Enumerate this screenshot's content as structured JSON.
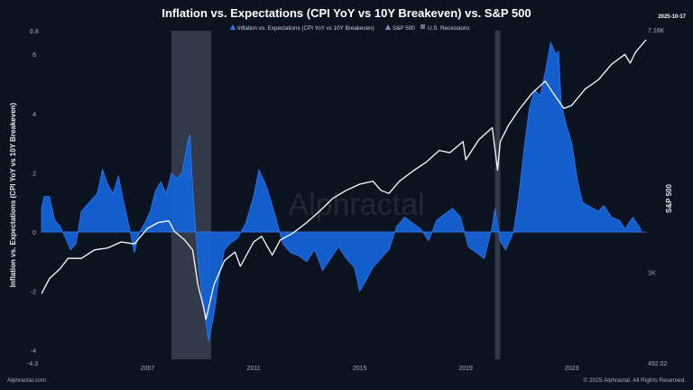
{
  "page": {
    "title": "Inflation vs. Expectations (CPI YoY vs 10Y Breakeven) vs. S&P 500",
    "date_badge": "2025-10-17",
    "footer_left": "Alphractal.com",
    "footer_right": "© 2025 Alphractal. All Rights Reserved.",
    "watermark": "Alphractal"
  },
  "colors": {
    "background": "#0b1220",
    "spread_fill": "#1463d6",
    "spread_line": "#2a7bf2",
    "sp500_line": "#ffffff",
    "recession": "#3a4150",
    "zero_line": "#2f6fd8",
    "text": "#e6e8ee",
    "muted": "#aab0bd"
  },
  "chart_data": {
    "type": "area",
    "title": "Inflation vs. Expectations (CPI YoY vs 10Y Breakeven) vs. S&P 500",
    "ylabel": "Inflation vs. Expectations (CPI YoY vs 10Y Breakeven)",
    "ylabel_right": "S&P 500",
    "xlim": [
      2003.0,
      2025.8
    ],
    "ylim": [
      -4.3,
      6.8
    ],
    "yticks": [
      -4,
      -2,
      0,
      2,
      4,
      6
    ],
    "ytick_top_label": "6.8",
    "ytick_bottom_label": "-4.3",
    "right_axis_log_range": [
      492.02,
      7160
    ],
    "right_ticks": [
      {
        "label": "7.16K",
        "value": 7160
      },
      {
        "label": "1K",
        "value": 1000
      },
      {
        "label": "492.02",
        "value": 492.02
      }
    ],
    "xticks": [
      {
        "label": "2007",
        "x": 2007
      },
      {
        "label": "2011",
        "x": 2011
      },
      {
        "label": "2015",
        "x": 2015
      },
      {
        "label": "2019",
        "x": 2019
      },
      {
        "label": "2023",
        "x": 2023
      }
    ],
    "legend": [
      {
        "name": "Inflation vs. Expectations (CPI YoY vs 10Y Breakeven)",
        "marker": "area"
      },
      {
        "name": "S&P 500",
        "marker": "area"
      },
      {
        "name": "U.S. Recessions",
        "marker": "band"
      }
    ],
    "recessions": [
      [
        2007.9,
        2009.4
      ],
      [
        2020.1,
        2020.3
      ]
    ],
    "series": [
      {
        "name": "Inflation vs. Expectations (CPI YoY vs 10Y Breakeven)",
        "x": [
          2003.0,
          2003.1,
          2003.3,
          2003.5,
          2003.7,
          2003.9,
          2004.1,
          2004.3,
          2004.5,
          2004.7,
          2004.9,
          2005.1,
          2005.3,
          2005.5,
          2005.7,
          2005.9,
          2006.1,
          2006.3,
          2006.5,
          2006.7,
          2006.9,
          2007.1,
          2007.3,
          2007.5,
          2007.7,
          2007.9,
          2008.1,
          2008.3,
          2008.5,
          2008.6,
          2008.7,
          2008.9,
          2009.1,
          2009.3,
          2009.5,
          2009.7,
          2009.9,
          2010.1,
          2010.4,
          2010.7,
          2011.0,
          2011.2,
          2011.5,
          2011.8,
          2012.1,
          2012.4,
          2012.7,
          2013.0,
          2013.3,
          2013.6,
          2013.9,
          2014.2,
          2014.5,
          2014.8,
          2015.0,
          2015.2,
          2015.5,
          2015.8,
          2016.1,
          2016.4,
          2016.7,
          2017.0,
          2017.3,
          2017.6,
          2017.9,
          2018.2,
          2018.5,
          2018.8,
          2019.1,
          2019.4,
          2019.7,
          2020.0,
          2020.1,
          2020.3,
          2020.5,
          2020.8,
          2021.0,
          2021.2,
          2021.4,
          2021.6,
          2021.8,
          2022.0,
          2022.2,
          2022.4,
          2022.5,
          2022.6,
          2022.8,
          2023.0,
          2023.2,
          2023.4,
          2023.6,
          2023.8,
          2024.0,
          2024.2,
          2024.5,
          2024.8,
          2025.0,
          2025.3,
          2025.6
        ],
        "values": [
          0.8,
          1.2,
          1.2,
          0.4,
          0.2,
          -0.2,
          -0.6,
          -0.4,
          0.7,
          0.9,
          1.1,
          1.3,
          2.1,
          1.6,
          1.3,
          1.9,
          1.0,
          0.2,
          -0.7,
          0.0,
          0.3,
          0.7,
          1.4,
          1.7,
          1.3,
          2.0,
          1.8,
          2.0,
          3.0,
          3.3,
          1.5,
          -1.0,
          -2.5,
          -3.7,
          -2.8,
          -1.5,
          -0.6,
          -0.4,
          -0.2,
          0.3,
          1.2,
          2.1,
          1.5,
          0.6,
          -0.4,
          -0.7,
          -0.8,
          -1.0,
          -0.6,
          -1.3,
          -0.9,
          -0.5,
          -0.9,
          -1.2,
          -2.0,
          -1.7,
          -1.2,
          -0.9,
          -0.6,
          0.2,
          0.5,
          0.3,
          0.1,
          -0.3,
          0.4,
          0.6,
          0.8,
          0.5,
          -0.5,
          -0.7,
          -0.9,
          0.2,
          0.8,
          -0.3,
          -0.6,
          0.0,
          1.2,
          2.8,
          4.2,
          4.8,
          4.6,
          5.4,
          6.4,
          6.0,
          6.1,
          4.3,
          3.6,
          3.0,
          1.8,
          1.0,
          0.9,
          0.8,
          0.7,
          0.9,
          0.5,
          0.4,
          0.1,
          0.5,
          0.1
        ]
      },
      {
        "name": "S&P 500",
        "x": [
          2003.0,
          2003.3,
          2003.7,
          2004.0,
          2004.5,
          2005.0,
          2005.5,
          2006.0,
          2006.5,
          2007.0,
          2007.4,
          2007.8,
          2008.0,
          2008.4,
          2008.7,
          2008.9,
          2009.1,
          2009.2,
          2009.5,
          2009.9,
          2010.3,
          2010.5,
          2011.0,
          2011.3,
          2011.7,
          2012.0,
          2012.5,
          2013.0,
          2013.5,
          2014.0,
          2014.5,
          2015.0,
          2015.5,
          2015.8,
          2016.1,
          2016.5,
          2017.0,
          2017.5,
          2018.0,
          2018.4,
          2018.9,
          2019.0,
          2019.5,
          2020.0,
          2020.2,
          2020.3,
          2020.6,
          2021.0,
          2021.5,
          2022.0,
          2022.3,
          2022.7,
          2023.0,
          2023.5,
          2024.0,
          2024.5,
          2025.0,
          2025.2,
          2025.4,
          2025.8
        ],
        "values": [
          840,
          950,
          1030,
          1120,
          1120,
          1200,
          1220,
          1280,
          1260,
          1430,
          1500,
          1520,
          1400,
          1300,
          1200,
          900,
          760,
          680,
          900,
          1100,
          1180,
          1050,
          1280,
          1340,
          1150,
          1300,
          1380,
          1500,
          1650,
          1830,
          1950,
          2050,
          2100,
          1950,
          1900,
          2100,
          2280,
          2450,
          2700,
          2650,
          2900,
          2500,
          2950,
          3250,
          2300,
          2900,
          3300,
          3750,
          4300,
          4750,
          4300,
          3800,
          3900,
          4450,
          4800,
          5450,
          5900,
          5500,
          6000,
          6650
        ]
      }
    ]
  }
}
